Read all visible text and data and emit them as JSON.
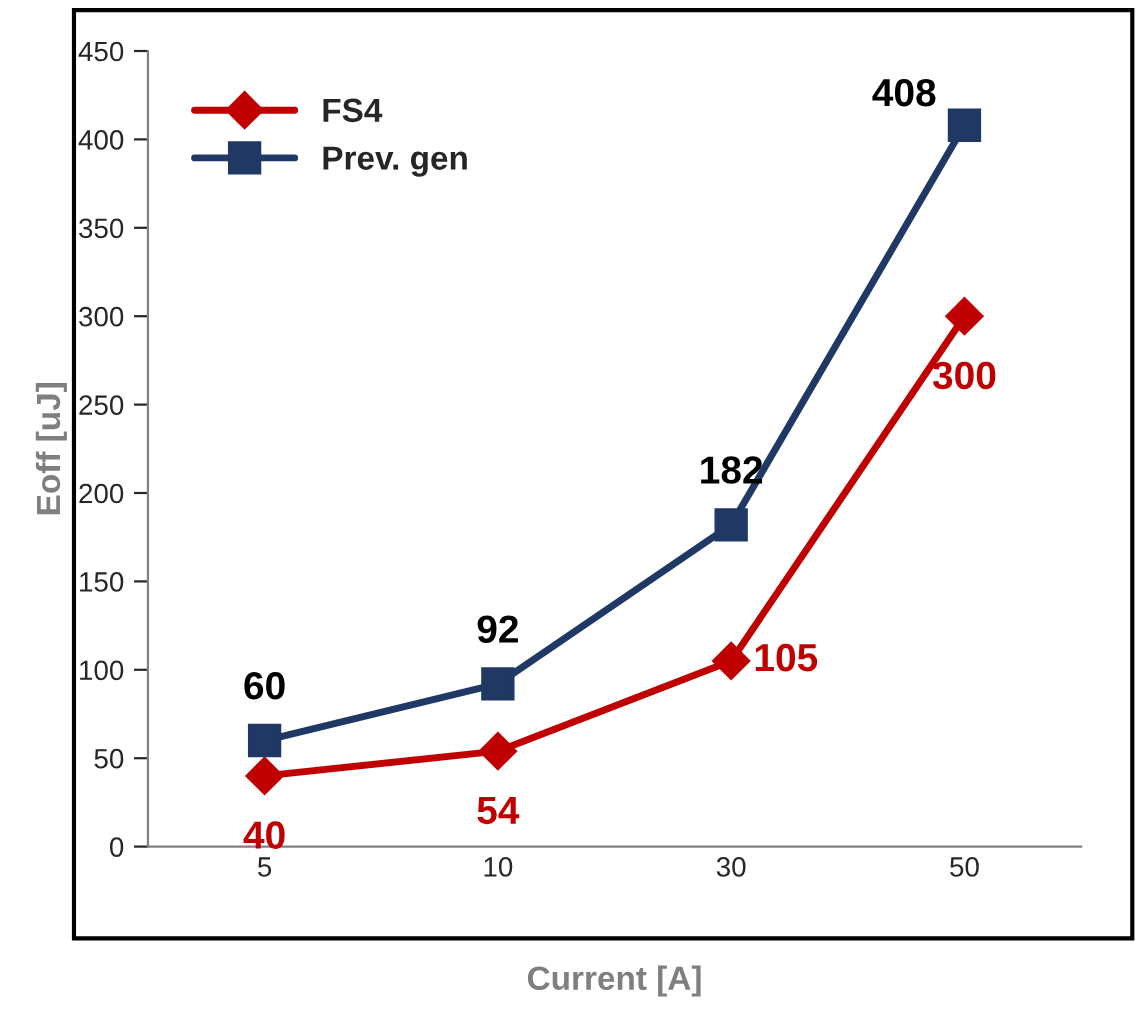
{
  "chart_data": {
    "type": "line",
    "xlabel": "Current [A]",
    "ylabel": "Eoff [uJ]",
    "categories": [
      "5",
      "10",
      "30",
      "50"
    ],
    "series": [
      {
        "name": "FS4",
        "color": "#c00000",
        "values": [
          40,
          54,
          105,
          300
        ],
        "marker": "diamond"
      },
      {
        "name": "Prev. gen",
        "color": "#1f3864",
        "values": [
          60,
          92,
          182,
          408
        ],
        "marker": "square"
      }
    ],
    "ylim": [
      0,
      450
    ],
    "yticks": [
      0,
      50,
      100,
      150,
      200,
      250,
      300,
      350,
      400,
      450
    ],
    "data_labels": true,
    "legend": "top left",
    "grid": false,
    "line_style": "solid"
  }
}
